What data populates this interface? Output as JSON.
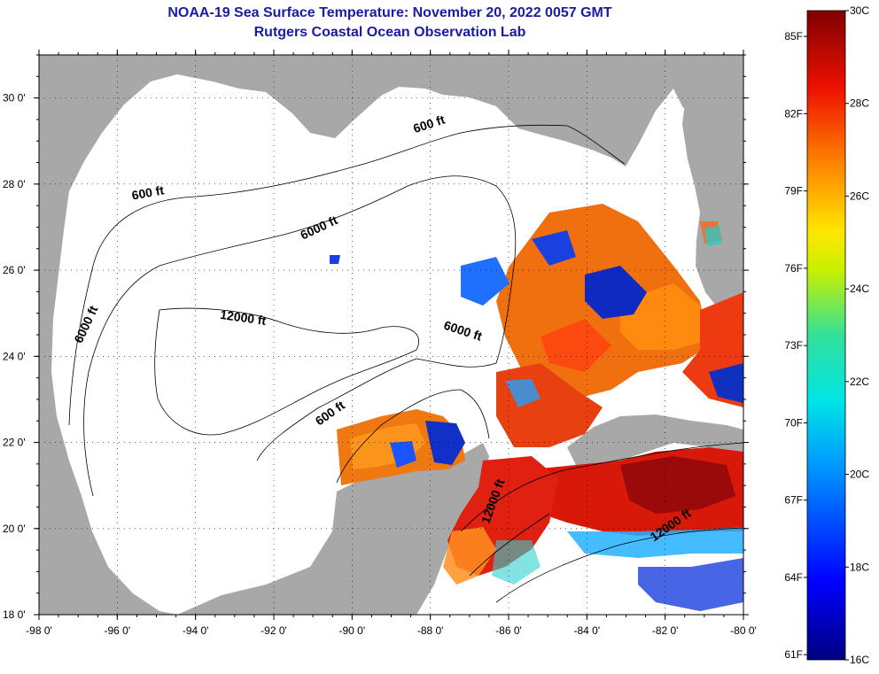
{
  "title": {
    "line1": "NOAA-19 Sea Surface Temperature:  November 20, 2022 0057 GMT",
    "line2": "Rutgers Coastal Ocean Observation Lab"
  },
  "colors": {
    "land": "#a8a8a8",
    "water_nodata": "#ffffff",
    "title": "#1a1aa6"
  },
  "map": {
    "lon_ticks": [
      "-98 0'",
      "-96 0'",
      "-94 0'",
      "-92 0'",
      "-90 0'",
      "-88 0'",
      "-86 0'",
      "-84 0'",
      "-82 0'",
      "-80 0'"
    ],
    "lat_ticks": [
      "30 0'",
      "28 0'",
      "26 0'",
      "24 0'",
      "22 0'",
      "20 0'",
      "18 0'"
    ],
    "contour_labels": [
      {
        "text": "600 ft",
        "lon": -88.0,
        "lat": 29.3,
        "rot": -18
      },
      {
        "text": "600 ft",
        "lon": -95.2,
        "lat": 27.7,
        "rot": -10
      },
      {
        "text": "6000 ft",
        "lon": -90.8,
        "lat": 26.9,
        "rot": -25
      },
      {
        "text": "12000 ft",
        "lon": -92.8,
        "lat": 24.8,
        "rot": 8
      },
      {
        "text": "6000 ft",
        "lon": -87.2,
        "lat": 24.5,
        "rot": 18
      },
      {
        "text": "6000 ft",
        "lon": -96.7,
        "lat": 24.7,
        "rot": -65
      },
      {
        "text": "600 ft",
        "lon": -90.5,
        "lat": 22.6,
        "rot": -35
      },
      {
        "text": "12000 ft",
        "lon": -86.3,
        "lat": 20.6,
        "rot": -70
      },
      {
        "text": "12000 ft",
        "lon": -81.8,
        "lat": 20.0,
        "rot": -35
      }
    ]
  },
  "colorbar": {
    "f_labels": [
      "85F",
      "82F",
      "79F",
      "76F",
      "73F",
      "70F",
      "67F",
      "64F",
      "61F"
    ],
    "c_labels": [
      "30C",
      "28C",
      "26C",
      "24C",
      "22C",
      "20C",
      "18C",
      "16C"
    ]
  }
}
